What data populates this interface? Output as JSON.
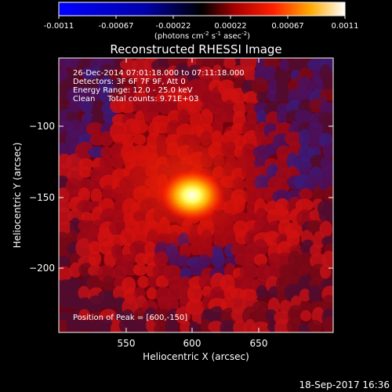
{
  "colorbar": {
    "ticks": [
      "-0.0011",
      "-0.00067",
      "-0.00022",
      "0.00022",
      "0.00067",
      "0.0011"
    ],
    "units_main": "(photons cm",
    "units_exp1": "-2",
    "units_mid": " s",
    "units_exp2": "-1",
    "units_tail": " asec",
    "units_exp3": "-2",
    "units_close": ")",
    "range": [
      -0.0011,
      0.0011
    ]
  },
  "title": "Reconstructed RHESSI Image",
  "info": {
    "line1": "26-Dec-2014 07:01:18.000 to 07:11:18.000",
    "line2": "Detectors: 3F 6F 7F 9F, Att 0",
    "line3": "Energy Range: 12.0 - 25.0 keV",
    "line4": "Clean     Total counts: 9.71E+03"
  },
  "peak_label": "Position of Peak = [600,-150]",
  "timestamp": "18-Sep-2017 16:36",
  "chart_data": {
    "type": "heatmap",
    "title": "Reconstructed RHESSI Image",
    "xlabel": "Heliocentric X (arcsec)",
    "ylabel": "Heliocentric Y (arcsec)",
    "xlim": [
      507,
      697
    ],
    "ylim": [
      -245,
      -55
    ],
    "xticks": [
      550,
      600,
      650
    ],
    "yticks": [
      -100,
      -150,
      -200
    ],
    "xtick_labels": [
      "550",
      "600",
      "650"
    ],
    "ytick_labels": [
      "−100",
      "−150",
      "−200"
    ],
    "peak": {
      "x": 600,
      "y": -150
    },
    "colorscale": "red-temperature",
    "colors": {
      "negative": "#0000ff",
      "zero": "#000000",
      "mid": "#ff0000",
      "high": "#ffff00",
      "max": "#ffffff"
    }
  }
}
